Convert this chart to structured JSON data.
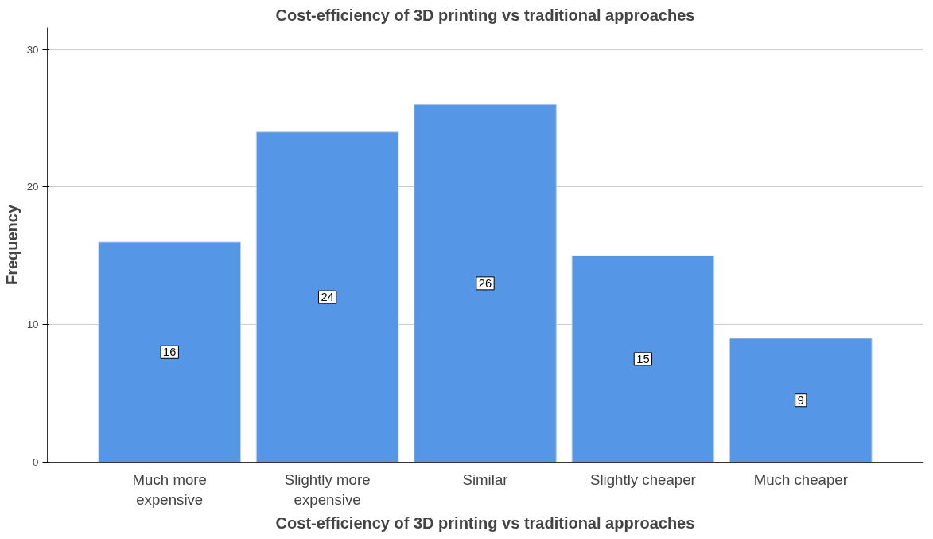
{
  "chart_data": {
    "type": "bar",
    "title": "Cost-efficiency of 3D printing vs traditional approaches",
    "xlabel": "Cost-efficiency of 3D printing vs traditional approaches",
    "ylabel": "Frequency",
    "categories": [
      "Much more expensive",
      "Slightly more expensive",
      "Similar",
      "Slightly cheaper",
      "Much cheaper"
    ],
    "values": [
      16,
      24,
      26,
      15,
      9
    ],
    "color": "#5596e6",
    "ylim": [
      0,
      31.6
    ],
    "yticks": [
      0,
      10,
      20,
      30
    ],
    "grid": "y",
    "data_labels": true
  }
}
